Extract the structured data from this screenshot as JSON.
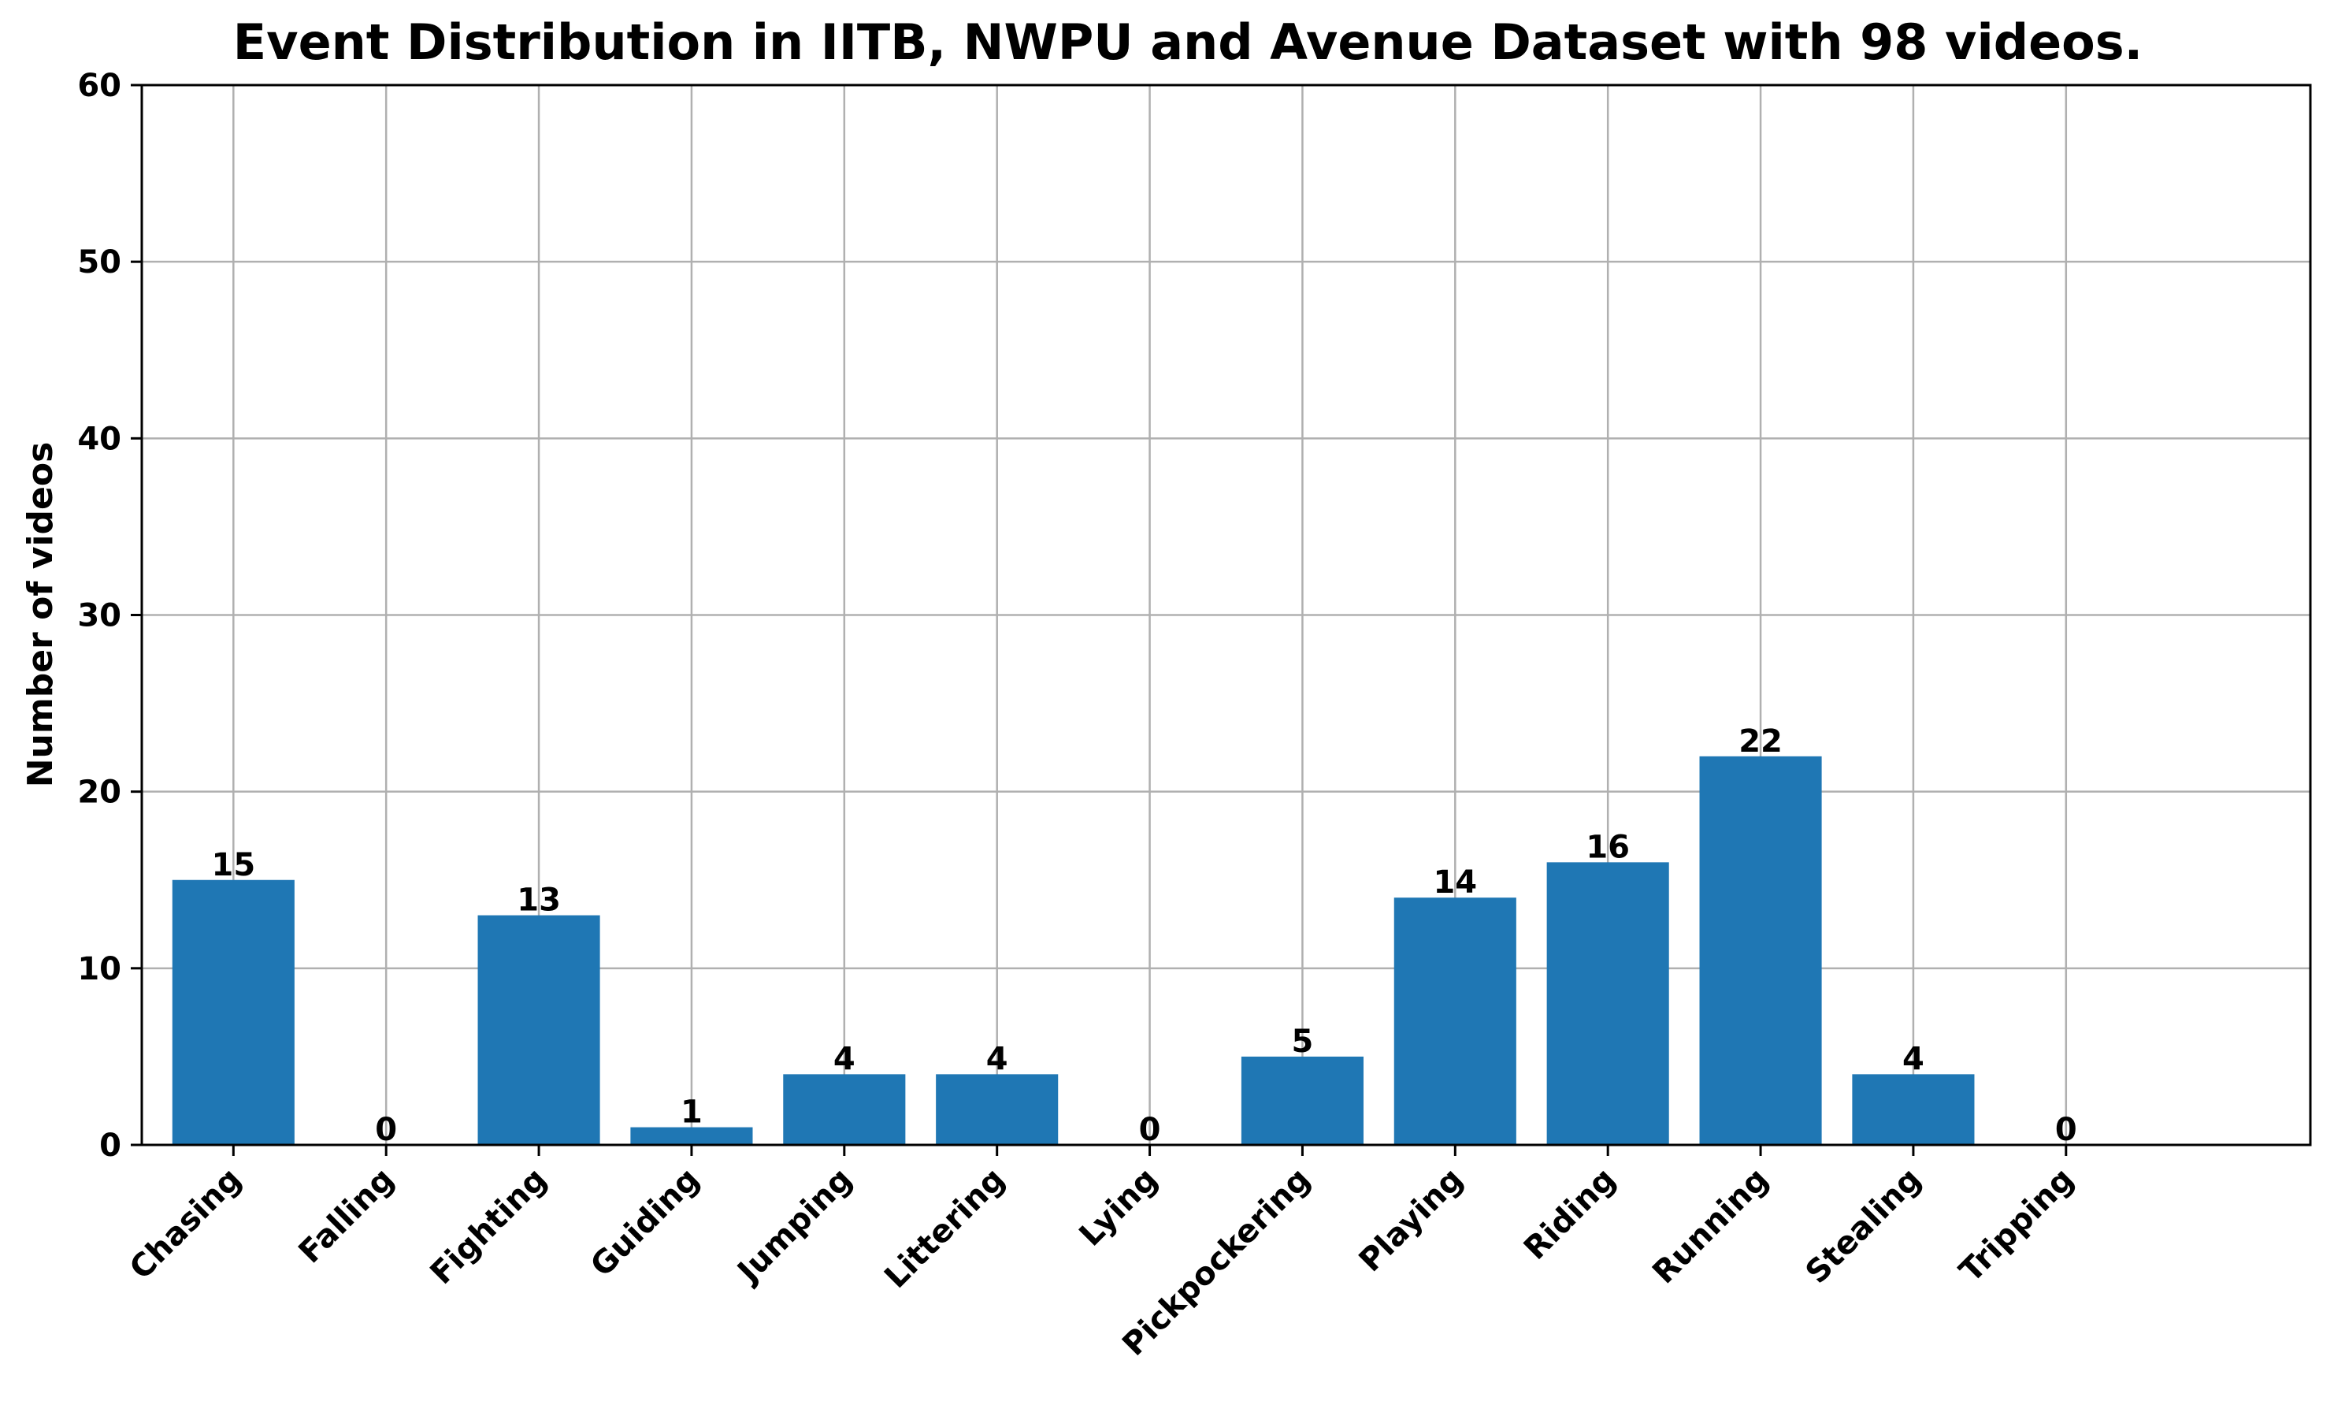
{
  "chart_data": {
    "type": "bar",
    "title": "Event Distribution in IITB, NWPU and Avenue Dataset with 98 videos.",
    "xlabel": "",
    "ylabel": "Number of videos",
    "categories": [
      "Chasing",
      "Falling",
      "Fighting",
      "Guiding",
      "Jumping",
      "Littering",
      "Lying",
      "Pickpockering",
      "Playing",
      "Riding",
      "Running",
      "Stealing",
      "Tripping"
    ],
    "values": [
      15,
      0,
      13,
      1,
      4,
      4,
      0,
      5,
      14,
      16,
      22,
      4,
      0
    ],
    "data_labels": [
      "15",
      "0",
      "13",
      "1",
      "4",
      "4",
      "0",
      "5",
      "14",
      "16",
      "22",
      "4",
      "0"
    ],
    "ylim": [
      0,
      60
    ],
    "yticks": [
      0,
      10,
      20,
      30,
      40,
      50,
      60
    ],
    "ytick_labels": [
      "0",
      "10",
      "20",
      "30",
      "40",
      "50",
      "60"
    ],
    "grid": true,
    "legend": "none",
    "colors": {
      "bar": "#1f77b4",
      "grid": "#b0b0b0",
      "axis": "#000000",
      "text": "#000000"
    }
  }
}
